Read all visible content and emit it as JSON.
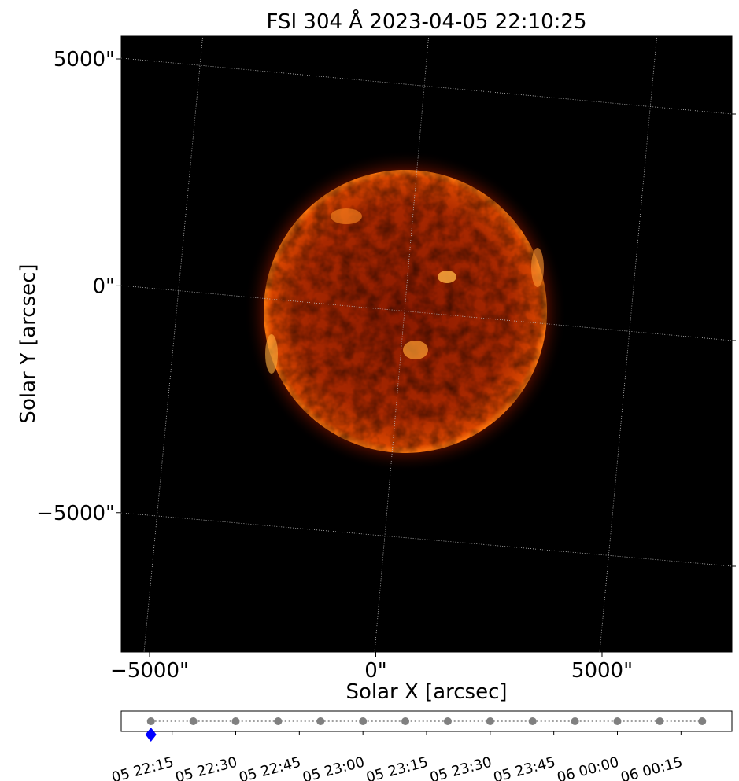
{
  "chart_data": [
    {
      "type": "image",
      "title": "FSI 304 Å 2023-04-05 22:10:25",
      "x_label": "Solar X [arcsec]",
      "y_label": "Solar Y [arcsec]",
      "xlim": [
        -5626,
        7870
      ],
      "ylim": [
        -8073,
        5503
      ],
      "xticks": [
        {
          "value": -5000,
          "label": "−5000\""
        },
        {
          "value": 0,
          "label": "0\""
        },
        {
          "value": 5000,
          "label": "5000\""
        }
      ],
      "yticks": [
        {
          "value": -5000,
          "label": "−5000\""
        },
        {
          "value": 0,
          "label": "0\""
        },
        {
          "value": 5000,
          "label": "5000\""
        }
      ]
    },
    {
      "type": "timeline",
      "xlim": [
        "05 22:03",
        "06 00:27"
      ],
      "xticks": [
        "05 22:15",
        "05 22:30",
        "05 22:45",
        "05 23:00",
        "05 23:15",
        "05 23:30",
        "05 23:45",
        "06 00:00",
        "06 00:15"
      ],
      "series": [
        {
          "color": "#808080",
          "marker": "circle",
          "line": "dotted",
          "x": [
            "05 22:10",
            "05 22:20",
            "05 22:30",
            "05 22:40",
            "05 22:50",
            "05 23:00",
            "05 23:10",
            "05 23:20",
            "05 23:30",
            "05 23:40",
            "05 23:50",
            "06 00:00",
            "06 00:10",
            "06 00:20"
          ]
        },
        {
          "color": "#0000ff",
          "marker": "diamond",
          "x": [
            "05 22:10"
          ]
        }
      ]
    }
  ]
}
